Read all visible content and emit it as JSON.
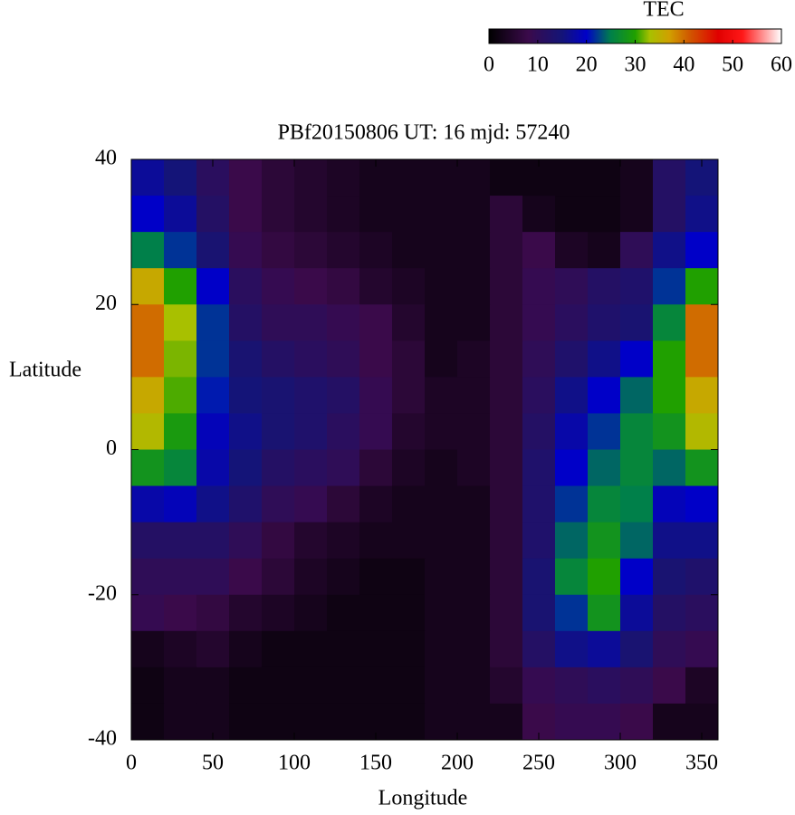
{
  "chart_data": {
    "type": "heatmap",
    "title": "PBf20150806  UT: 16  mjd: 57240",
    "xlabel": "Longitude",
    "ylabel": "Latitude",
    "colorbar_label": "TEC",
    "xlim": [
      0,
      360
    ],
    "ylim": [
      -40,
      40
    ],
    "zlim": [
      0,
      60
    ],
    "xticks": [
      0,
      50,
      100,
      150,
      200,
      250,
      300,
      350
    ],
    "yticks": [
      -40,
      -20,
      0,
      20,
      40
    ],
    "cticks": [
      0,
      10,
      20,
      30,
      40,
      50,
      60
    ],
    "colorscale": [
      [
        0,
        "#000000"
      ],
      [
        8,
        "#3a0a4a"
      ],
      [
        15,
        "#141478"
      ],
      [
        20,
        "#0000c8"
      ],
      [
        25,
        "#00804a"
      ],
      [
        30,
        "#20a000"
      ],
      [
        33,
        "#a8c000"
      ],
      [
        37,
        "#d0a000"
      ],
      [
        41,
        "#d05a00"
      ],
      [
        47,
        "#e00000"
      ],
      [
        52,
        "#ff1818"
      ],
      [
        60,
        "#ffffff"
      ]
    ],
    "x": [
      10,
      30,
      50,
      70,
      90,
      110,
      130,
      150,
      170,
      190,
      210,
      230,
      250,
      270,
      290,
      310,
      330,
      350
    ],
    "y": [
      37.5,
      32.5,
      27.5,
      22.5,
      17.5,
      12.5,
      7.5,
      2.5,
      -2.5,
      -7.5,
      -12.5,
      -17.5,
      -22.5,
      -27.5,
      -32.5,
      -37.5
    ],
    "values": [
      [
        17,
        15,
        11,
        8,
        6,
        5,
        4,
        3,
        3,
        3,
        3,
        2,
        2,
        2,
        2,
        3,
        12,
        15
      ],
      [
        20,
        17,
        12,
        8,
        6,
        5,
        4,
        3,
        3,
        3,
        3,
        6,
        3,
        2,
        2,
        3,
        12,
        16
      ],
      [
        25,
        22,
        14,
        9,
        7,
        6,
        5,
        4,
        3,
        3,
        3,
        6,
        8,
        4,
        3,
        10,
        16,
        20
      ],
      [
        36,
        30,
        20,
        11,
        9,
        8,
        7,
        5,
        4,
        3,
        3,
        6,
        9,
        10,
        12,
        13,
        22,
        30
      ],
      [
        40,
        33,
        22,
        12,
        10,
        10,
        9,
        8,
        5,
        3,
        3,
        6,
        9,
        11,
        13,
        14,
        26,
        40
      ],
      [
        40,
        32,
        22,
        14,
        12,
        11,
        10,
        8,
        6,
        3,
        4,
        6,
        10,
        13,
        16,
        20,
        30,
        40
      ],
      [
        36,
        31,
        21,
        15,
        14,
        13,
        12,
        9,
        6,
        4,
        4,
        6,
        11,
        16,
        20,
        24,
        30,
        36
      ],
      [
        34,
        29,
        19,
        16,
        14,
        13,
        11,
        9,
        5,
        4,
        4,
        6,
        12,
        18,
        22,
        26,
        28,
        34
      ],
      [
        28,
        26,
        18,
        15,
        12,
        11,
        10,
        6,
        4,
        3,
        4,
        6,
        13,
        20,
        24,
        26,
        24,
        28
      ],
      [
        18,
        19,
        16,
        13,
        10,
        9,
        6,
        4,
        3,
        3,
        3,
        6,
        13,
        22,
        26,
        25,
        19,
        20
      ],
      [
        12,
        12,
        12,
        10,
        7,
        5,
        4,
        3,
        3,
        3,
        3,
        6,
        13,
        24,
        28,
        24,
        16,
        16
      ],
      [
        10,
        10,
        10,
        8,
        6,
        4,
        3,
        2,
        2,
        3,
        3,
        6,
        14,
        26,
        30,
        20,
        14,
        13
      ],
      [
        9,
        8,
        7,
        5,
        4,
        3,
        2,
        2,
        2,
        3,
        3,
        6,
        14,
        22,
        28,
        17,
        12,
        11
      ],
      [
        3,
        4,
        5,
        3,
        2,
        2,
        2,
        2,
        2,
        3,
        3,
        6,
        12,
        16,
        17,
        14,
        10,
        9
      ],
      [
        2,
        3,
        3,
        2,
        2,
        2,
        2,
        2,
        2,
        3,
        3,
        5,
        9,
        10,
        11,
        10,
        8,
        4
      ],
      [
        2,
        3,
        3,
        2,
        2,
        2,
        2,
        2,
        2,
        3,
        3,
        3,
        8,
        9,
        9,
        8,
        3,
        3
      ]
    ]
  }
}
